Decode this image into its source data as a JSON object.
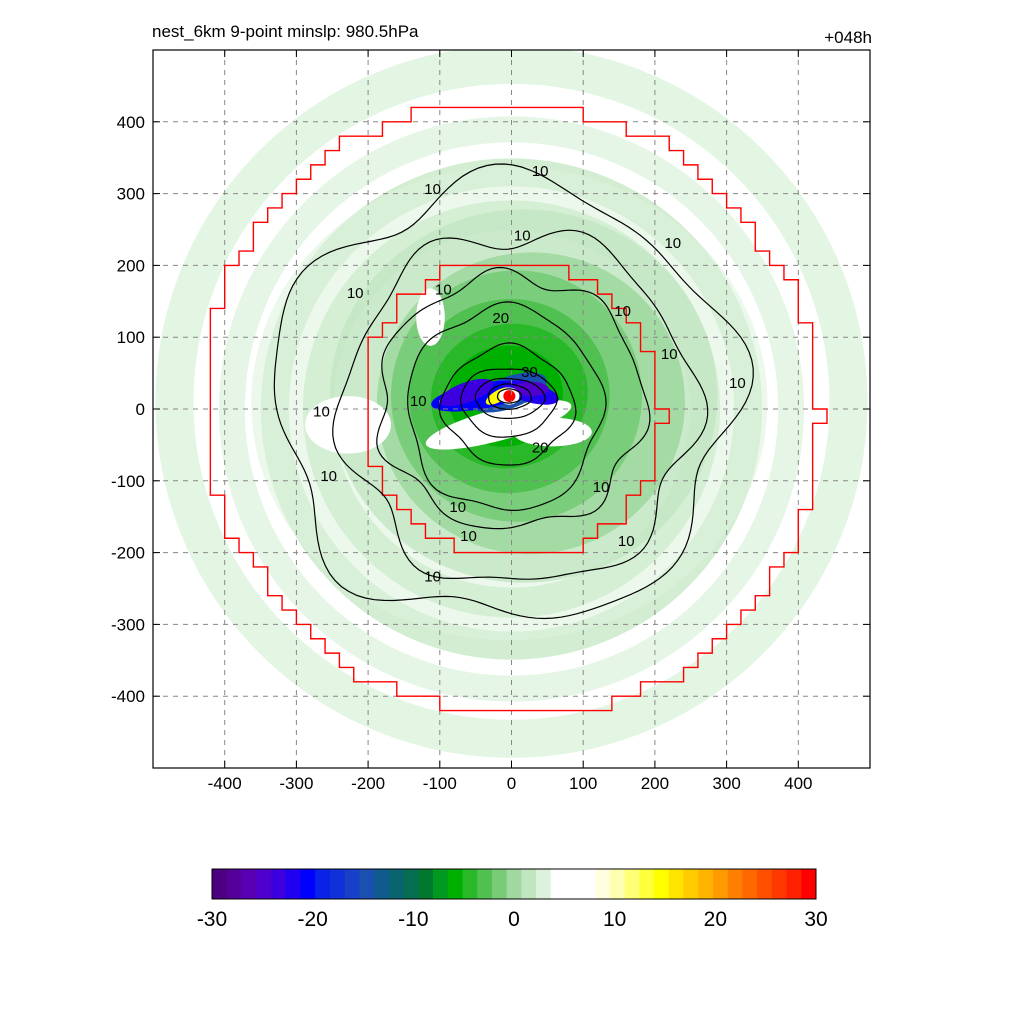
{
  "header": {
    "title_left": "nest_6km  9-point minslp: 980.5hPa",
    "title_right": "+048h"
  },
  "chart_data": {
    "type": "heatmap",
    "title": "nest_6km  9-point minslp: 980.5hPa",
    "subtitle": "+048h",
    "xlim": [
      -500,
      500
    ],
    "ylim": [
      -500,
      500
    ],
    "x_ticks": [
      -400,
      -300,
      -200,
      -100,
      0,
      100,
      200,
      300,
      400
    ],
    "y_ticks": [
      400,
      300,
      200,
      100,
      0,
      -100,
      -200,
      -300,
      -400
    ],
    "x_tick_labels": [
      "-400",
      "-300",
      "-200",
      "-100",
      "0",
      "100",
      "200",
      "300",
      "400"
    ],
    "y_tick_labels": [
      "400",
      "300",
      "200",
      "100",
      "0",
      "-100",
      "-200",
      "-300",
      "-400"
    ],
    "grid": true,
    "storm_center": [
      -3,
      18
    ],
    "min_slp_hpa": 980.5,
    "contour_levels": [
      10,
      20,
      30
    ],
    "contour_labels": [
      {
        "text": "10",
        "x": -110,
        "y": 305
      },
      {
        "text": "10",
        "x": 40,
        "y": 330
      },
      {
        "text": "10",
        "x": 15,
        "y": 240
      },
      {
        "text": "10",
        "x": 225,
        "y": 230
      },
      {
        "text": "10",
        "x": -218,
        "y": 160
      },
      {
        "text": "10",
        "x": -95,
        "y": 165
      },
      {
        "text": "10",
        "x": 155,
        "y": 135
      },
      {
        "text": "10",
        "x": 220,
        "y": 75
      },
      {
        "text": "10",
        "x": 315,
        "y": 35
      },
      {
        "text": "10",
        "x": -265,
        "y": -5
      },
      {
        "text": "10",
        "x": -130,
        "y": 10
      },
      {
        "text": "10",
        "x": -255,
        "y": -95
      },
      {
        "text": "10",
        "x": 125,
        "y": -110
      },
      {
        "text": "10",
        "x": -75,
        "y": -138
      },
      {
        "text": "10",
        "x": -60,
        "y": -178
      },
      {
        "text": "10",
        "x": 160,
        "y": -185
      },
      {
        "text": "10",
        "x": -110,
        "y": -235
      },
      {
        "text": "20",
        "x": -15,
        "y": 125
      },
      {
        "text": "20",
        "x": 40,
        "y": -55
      },
      {
        "text": "30",
        "x": 25,
        "y": 50
      }
    ],
    "red_boundaries": [
      {
        "name": "inner",
        "radius": 210
      },
      {
        "name": "outer",
        "radius": 430
      }
    ],
    "colorbar": {
      "min": -30,
      "max": 30,
      "ticks": [
        -30,
        -20,
        -10,
        0,
        10,
        20,
        30
      ],
      "tick_labels": [
        "-30",
        "-20",
        "-10",
        "0",
        "10",
        "20",
        "30"
      ],
      "colors": [
        "#4b0082",
        "#55009a",
        "#5a00b4",
        "#5000cc",
        "#3c00e0",
        "#2000f0",
        "#0000ff",
        "#0a22e8",
        "#1030d8",
        "#1840c8",
        "#1a50b0",
        "#105a90",
        "#0a6470",
        "#056e50",
        "#007830",
        "#009a20",
        "#00b000",
        "#28b828",
        "#50c050",
        "#78cc78",
        "#a0d8a0",
        "#c0e6c0",
        "#dcf2dc",
        "#ffffff",
        "#ffffff",
        "#ffffff",
        "#ffffe0",
        "#ffffb4",
        "#ffff78",
        "#ffff3c",
        "#ffff00",
        "#ffe400",
        "#ffcc00",
        "#ffb400",
        "#ff9a00",
        "#ff8000",
        "#ff6800",
        "#ff5000",
        "#ff3800",
        "#ff2000",
        "#ff0000"
      ]
    },
    "colors": {
      "contour": "#000000",
      "boundary": "#ff0000",
      "grid": "#888888"
    }
  }
}
